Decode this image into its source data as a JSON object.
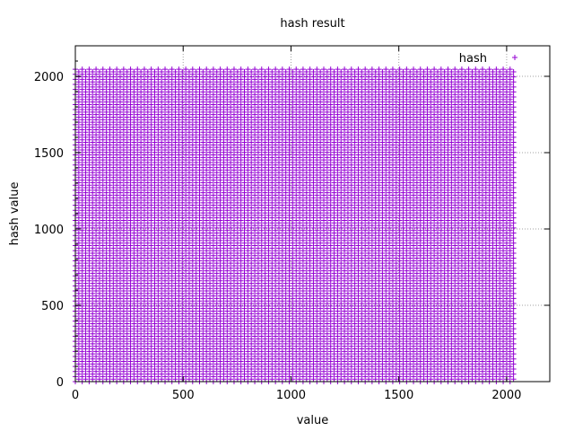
{
  "chart_data": {
    "type": "scatter",
    "title": "hash result",
    "xlabel": "value",
    "ylabel": "hash value",
    "xlim": [
      0,
      2200
    ],
    "ylim": [
      0,
      2200
    ],
    "xticks": [
      0,
      500,
      1000,
      1500,
      2000
    ],
    "yticks": [
      0,
      500,
      1000,
      1500,
      2000
    ],
    "grid": true,
    "legend_position": "top-right",
    "series": [
      {
        "name": "hash",
        "color": "#9400d3",
        "marker": "plus",
        "generator": {
          "description": "dense lattice of points: hash value covering 0-2047 for x values 0-2047",
          "x_range": [
            0,
            2047
          ],
          "y_range": [
            0,
            2047
          ],
          "x_step": 16,
          "y_step": 33
        }
      }
    ]
  }
}
